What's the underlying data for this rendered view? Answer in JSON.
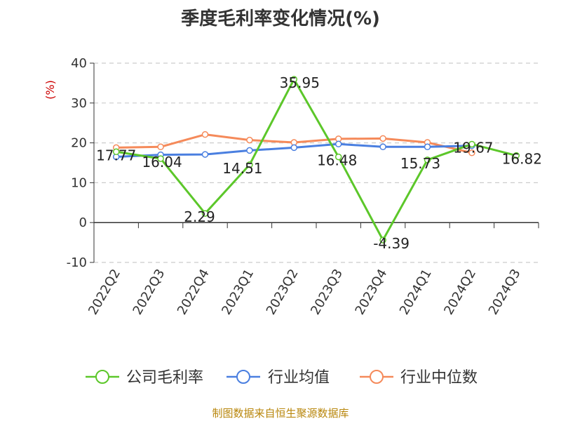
{
  "chart_data": {
    "type": "line",
    "title": "季度毛利率变化情况(%)",
    "ylabel": "(%)",
    "xlabel": "",
    "ylim": [
      -10,
      40
    ],
    "yticks": [
      40,
      30,
      20,
      10,
      0,
      -10
    ],
    "grid": true,
    "legend_position": "bottom",
    "categories": [
      "2022Q2",
      "2022Q3",
      "2022Q4",
      "2023Q1",
      "2023Q2",
      "2023Q3",
      "2023Q4",
      "2024Q1",
      "2024Q2",
      "2024Q3"
    ],
    "series": [
      {
        "name": "公司毛利率",
        "color": "#5cc72a",
        "values": [
          17.77,
          16.04,
          2.29,
          14.51,
          35.95,
          16.48,
          -4.39,
          15.73,
          19.67,
          16.82
        ],
        "labels": [
          "17.77",
          "16.04",
          "2.29",
          "14.51",
          "35.95",
          "16.48",
          "-4.39",
          "15.73",
          "19.67",
          "16.82"
        ]
      },
      {
        "name": "行业均值",
        "color": "#4a7fe0",
        "values": [
          16.5,
          17.0,
          17.1,
          18.1,
          18.8,
          19.7,
          19.0,
          19.0,
          19.3,
          null
        ]
      },
      {
        "name": "行业中位数",
        "color": "#f58a5a",
        "values": [
          18.8,
          19.0,
          22.1,
          20.7,
          20.1,
          21.0,
          21.1,
          20.1,
          17.5,
          null
        ]
      }
    ]
  },
  "footer": {
    "source": "制图数据来自恒生聚源数据库"
  }
}
